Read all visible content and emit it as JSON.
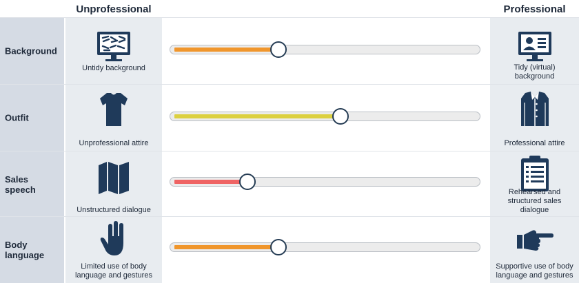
{
  "headers": {
    "left": "Unprofessional",
    "right": "Professional"
  },
  "colors": {
    "icon": "#1f3a5a",
    "orange": "#f0962c",
    "yellow": "#dcd040",
    "red": "#ef6464"
  },
  "rows": [
    {
      "label": "Background",
      "left_caption": "Untidy background",
      "right_caption": "Tidy (virtual) background",
      "level_percent": 35,
      "color": "#f0962c",
      "left_icon": "messy-monitor-icon",
      "right_icon": "profile-monitor-icon"
    },
    {
      "label": "Outfit",
      "left_caption": "Unprofessional attire",
      "right_caption": "Professional attire",
      "level_percent": 55,
      "color": "#dcd040",
      "left_icon": "tshirt-icon",
      "right_icon": "dress-shirt-icon"
    },
    {
      "label": "Sales speech",
      "left_caption": "Unstructured dialogue",
      "right_caption": "Rehearsed and structured sales dialogue",
      "level_percent": 25,
      "color": "#ef6464",
      "left_icon": "map-icon",
      "right_icon": "clipboard-icon"
    },
    {
      "label": "Body language",
      "left_caption": "Limited use of body language and gestures",
      "right_caption": "Supportive use of body language and gestures",
      "level_percent": 35,
      "color": "#f0962c",
      "left_icon": "open-hand-icon",
      "right_icon": "pointing-hand-icon"
    }
  ]
}
